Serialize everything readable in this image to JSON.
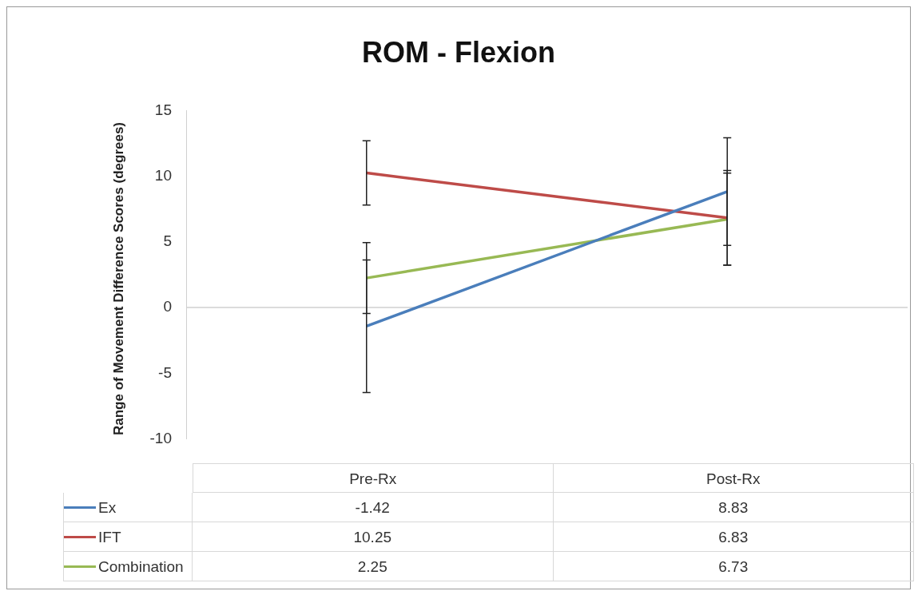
{
  "chart_data": {
    "type": "line",
    "title": "ROM - Flexion",
    "ylabel": "Range of Movement Difference Scores (degrees)",
    "categories": [
      "Pre-Rx",
      "Post-Rx"
    ],
    "ylim": [
      -10,
      15
    ],
    "yticks": [
      -10,
      -5,
      0,
      5,
      10,
      15
    ],
    "grid": false,
    "ref_lines": [
      {
        "axis": "y",
        "value": 0,
        "color": "#d0d0d0"
      }
    ],
    "legend": "bottom",
    "marker": "none",
    "data_labels": true,
    "series": [
      {
        "name": "Ex",
        "color": "#4a7ebb",
        "values": [
          -1.42,
          8.83
        ],
        "errors": [
          5.05,
          4.1
        ]
      },
      {
        "name": "IFT",
        "color": "#be4b48",
        "values": [
          10.25,
          6.83
        ],
        "errors": [
          2.45,
          3.6
        ]
      },
      {
        "name": "Combination",
        "color": "#98b954",
        "values": [
          2.25,
          6.73
        ],
        "errors": [
          2.7,
          3.5
        ]
      }
    ]
  }
}
